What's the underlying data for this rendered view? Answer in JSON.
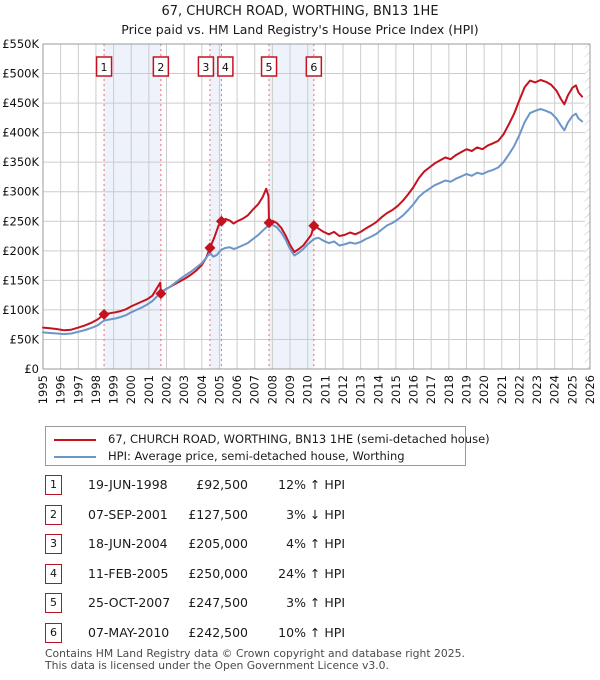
{
  "header": {
    "title": "67, CHURCH ROAD, WORTHING, BN13 1HE",
    "subtitle": "Price paid vs. HM Land Registry's House Price Index (HPI)"
  },
  "legend": {
    "items": [
      {
        "label": "67, CHURCH ROAD, WORTHING, BN13 1HE (semi-detached house)",
        "color": "#c4121f"
      },
      {
        "label": "HPI: Average price, semi-detached house, Worthing",
        "color": "#6d96c8"
      }
    ]
  },
  "table": {
    "rows": [
      {
        "num": "1",
        "date": "19-JUN-1998",
        "price": "£92,500",
        "hpi": "12% ↑ HPI"
      },
      {
        "num": "2",
        "date": "07-SEP-2001",
        "price": "£127,500",
        "hpi": "3% ↓ HPI"
      },
      {
        "num": "3",
        "date": "18-JUN-2004",
        "price": "£205,000",
        "hpi": "4% ↑ HPI"
      },
      {
        "num": "4",
        "date": "11-FEB-2005",
        "price": "£250,000",
        "hpi": "24% ↑ HPI"
      },
      {
        "num": "5",
        "date": "25-OCT-2007",
        "price": "£247,500",
        "hpi": "3% ↑ HPI"
      },
      {
        "num": "6",
        "date": "07-MAY-2010",
        "price": "£242,500",
        "hpi": "10% ↑ HPI"
      }
    ]
  },
  "footer": {
    "line1": "Contains HM Land Registry data © Crown copyright and database right 2025.",
    "line2": "This data is licensed under the Open Government Licence v3.0."
  },
  "chart_data": {
    "type": "line",
    "title": "67, CHURCH ROAD, WORTHING, BN13 1HE",
    "subtitle": "Price paid vs. HM Land Registry's House Price Index (HPI)",
    "units": "GBP_thousands",
    "xlim": [
      1995,
      2026
    ],
    "ylim": [
      0,
      550
    ],
    "grid": true,
    "legend_position": "below",
    "colors": {
      "red": "#c4121f",
      "blue": "#6d96c8",
      "dashed": "#f26d6d",
      "band": "#edf2fb",
      "grid": "#cccccc",
      "frame": "#999999",
      "hatch": "#c3c3cc"
    },
    "y_ticks": [
      {
        "label": "£550K",
        "value": 550
      },
      {
        "label": "£500K",
        "value": 500
      },
      {
        "label": "£450K",
        "value": 450
      },
      {
        "label": "£400K",
        "value": 400
      },
      {
        "label": "£350K",
        "value": 350
      },
      {
        "label": "£300K",
        "value": 300
      },
      {
        "label": "£250K",
        "value": 250
      },
      {
        "label": "£200K",
        "value": 200
      },
      {
        "label": "£150K",
        "value": 150
      },
      {
        "label": "£100K",
        "value": 100
      },
      {
        "label": "£50K",
        "value": 50
      },
      {
        "label": "£0",
        "value": 0
      }
    ],
    "x_ticks": [
      "1995",
      "1996",
      "1997",
      "1998",
      "1999",
      "2000",
      "2001",
      "2002",
      "2003",
      "2004",
      "2005",
      "2006",
      "2007",
      "2008",
      "2009",
      "2010",
      "2011",
      "2012",
      "2013",
      "2014",
      "2015",
      "2016",
      "2017",
      "2018",
      "2019",
      "2020",
      "2021",
      "2022",
      "2023",
      "2024",
      "2025",
      "2026"
    ],
    "sales": [
      {
        "num": "1",
        "date": "19-JUN-1998",
        "year": 1998.46,
        "price": 92500,
        "hpi_diff": "12% ↑ HPI"
      },
      {
        "num": "2",
        "date": "07-SEP-2001",
        "year": 2001.68,
        "price": 127500,
        "hpi_diff": "3% ↓ HPI"
      },
      {
        "num": "3",
        "date": "18-JUN-2004",
        "year": 2004.46,
        "price": 205000,
        "hpi_diff": "4% ↑ HPI"
      },
      {
        "num": "4",
        "date": "11-FEB-2005",
        "year": 2005.11,
        "price": 250000,
        "hpi_diff": "24% ↑ HPI"
      },
      {
        "num": "5",
        "date": "25-OCT-2007",
        "year": 2007.81,
        "price": 247500,
        "hpi_diff": "3% ↑ HPI"
      },
      {
        "num": "6",
        "date": "07-MAY-2010",
        "year": 2010.35,
        "price": 242500,
        "hpi_diff": "10% ↑ HPI"
      }
    ],
    "ownership_bands": [
      [
        1998.46,
        2001.68
      ],
      [
        2004.46,
        2005.11
      ],
      [
        2007.81,
        2010.35
      ]
    ],
    "no_data_band": [
      2025.7,
      2026
    ],
    "series": [
      {
        "id": "price-paid",
        "name": "67, CHURCH ROAD, WORTHING, BN13 1HE (semi-detached house)",
        "color": "#c4121f",
        "points": [
          [
            1995.0,
            70
          ],
          [
            1995.4,
            69
          ],
          [
            1995.8,
            67.5
          ],
          [
            1996.2,
            65.5
          ],
          [
            1996.6,
            66.5
          ],
          [
            1997.0,
            70
          ],
          [
            1997.4,
            74
          ],
          [
            1997.8,
            79
          ],
          [
            1998.1,
            84
          ],
          [
            1998.46,
            92.5
          ],
          [
            1998.8,
            94.5
          ],
          [
            1999.1,
            96
          ],
          [
            1999.4,
            98
          ],
          [
            1999.7,
            101
          ],
          [
            2000.0,
            106
          ],
          [
            2000.3,
            110
          ],
          [
            2000.6,
            114
          ],
          [
            2000.9,
            118
          ],
          [
            2001.2,
            124
          ],
          [
            2001.5,
            139
          ],
          [
            2001.65,
            146
          ],
          [
            2001.68,
            127.5
          ],
          [
            2001.9,
            134
          ],
          [
            2002.2,
            139
          ],
          [
            2002.5,
            144
          ],
          [
            2002.8,
            149
          ],
          [
            2003.1,
            154
          ],
          [
            2003.4,
            160
          ],
          [
            2003.7,
            167
          ],
          [
            2004.0,
            176
          ],
          [
            2004.25,
            188
          ],
          [
            2004.46,
            205
          ],
          [
            2004.7,
            222
          ],
          [
            2004.95,
            243
          ],
          [
            2005.11,
            250
          ],
          [
            2005.35,
            254
          ],
          [
            2005.6,
            251
          ],
          [
            2005.8,
            246
          ],
          [
            2006.0,
            250
          ],
          [
            2006.3,
            254
          ],
          [
            2006.6,
            260
          ],
          [
            2006.9,
            270
          ],
          [
            2007.2,
            279
          ],
          [
            2007.45,
            291
          ],
          [
            2007.65,
            305
          ],
          [
            2007.78,
            293
          ],
          [
            2007.81,
            247.5
          ],
          [
            2008.0,
            251
          ],
          [
            2008.25,
            247
          ],
          [
            2008.5,
            239
          ],
          [
            2008.75,
            226
          ],
          [
            2009.0,
            210
          ],
          [
            2009.25,
            198
          ],
          [
            2009.5,
            203
          ],
          [
            2009.75,
            209
          ],
          [
            2010.0,
            219
          ],
          [
            2010.2,
            227
          ],
          [
            2010.35,
            242.5
          ],
          [
            2010.6,
            238
          ],
          [
            2010.9,
            232
          ],
          [
            2011.2,
            228
          ],
          [
            2011.5,
            232
          ],
          [
            2011.8,
            225
          ],
          [
            2012.1,
            227
          ],
          [
            2012.4,
            231
          ],
          [
            2012.7,
            228
          ],
          [
            2013.0,
            232
          ],
          [
            2013.3,
            238
          ],
          [
            2013.6,
            243
          ],
          [
            2013.9,
            249
          ],
          [
            2014.2,
            257
          ],
          [
            2014.5,
            264
          ],
          [
            2014.8,
            269
          ],
          [
            2015.1,
            276
          ],
          [
            2015.4,
            285
          ],
          [
            2015.7,
            296
          ],
          [
            2016.0,
            308
          ],
          [
            2016.3,
            323
          ],
          [
            2016.6,
            334
          ],
          [
            2016.9,
            341
          ],
          [
            2017.2,
            348
          ],
          [
            2017.5,
            353
          ],
          [
            2017.8,
            358
          ],
          [
            2018.1,
            355
          ],
          [
            2018.4,
            362
          ],
          [
            2018.7,
            367
          ],
          [
            2019.0,
            372
          ],
          [
            2019.3,
            369
          ],
          [
            2019.6,
            375
          ],
          [
            2019.9,
            372
          ],
          [
            2020.2,
            378
          ],
          [
            2020.5,
            382
          ],
          [
            2020.8,
            386
          ],
          [
            2021.1,
            397
          ],
          [
            2021.4,
            414
          ],
          [
            2021.7,
            432
          ],
          [
            2022.0,
            455
          ],
          [
            2022.3,
            477
          ],
          [
            2022.6,
            488
          ],
          [
            2022.9,
            485
          ],
          [
            2023.2,
            489
          ],
          [
            2023.5,
            486
          ],
          [
            2023.8,
            481
          ],
          [
            2024.1,
            471
          ],
          [
            2024.35,
            457
          ],
          [
            2024.55,
            448
          ],
          [
            2024.75,
            463
          ],
          [
            2025.0,
            476
          ],
          [
            2025.2,
            480
          ],
          [
            2025.35,
            468
          ],
          [
            2025.55,
            461
          ]
        ]
      },
      {
        "id": "hpi",
        "name": "HPI: Average price, semi-detached house, Worthing",
        "color": "#6d96c8",
        "points": [
          [
            1995.0,
            62
          ],
          [
            1995.4,
            61
          ],
          [
            1995.8,
            60
          ],
          [
            1996.2,
            59
          ],
          [
            1996.6,
            60
          ],
          [
            1997.0,
            63
          ],
          [
            1997.4,
            66
          ],
          [
            1997.8,
            70
          ],
          [
            1998.1,
            74
          ],
          [
            1998.46,
            82
          ],
          [
            1998.8,
            84
          ],
          [
            1999.1,
            85.5
          ],
          [
            1999.4,
            88
          ],
          [
            1999.7,
            91
          ],
          [
            2000.0,
            96
          ],
          [
            2000.3,
            100
          ],
          [
            2000.6,
            104
          ],
          [
            2000.9,
            109
          ],
          [
            2001.2,
            115
          ],
          [
            2001.5,
            124
          ],
          [
            2001.68,
            131
          ],
          [
            2001.9,
            134
          ],
          [
            2002.2,
            139
          ],
          [
            2002.5,
            146
          ],
          [
            2002.8,
            153
          ],
          [
            2003.1,
            159
          ],
          [
            2003.4,
            165
          ],
          [
            2003.7,
            172
          ],
          [
            2004.0,
            179
          ],
          [
            2004.25,
            188
          ],
          [
            2004.46,
            197
          ],
          [
            2004.65,
            190
          ],
          [
            2004.85,
            193
          ],
          [
            2005.11,
            202
          ],
          [
            2005.35,
            205
          ],
          [
            2005.6,
            206
          ],
          [
            2005.8,
            203
          ],
          [
            2006.0,
            205
          ],
          [
            2006.3,
            209
          ],
          [
            2006.6,
            213
          ],
          [
            2006.9,
            220
          ],
          [
            2007.2,
            227
          ],
          [
            2007.45,
            234
          ],
          [
            2007.7,
            241
          ],
          [
            2007.95,
            245
          ],
          [
            2008.25,
            240
          ],
          [
            2008.5,
            231
          ],
          [
            2008.75,
            219
          ],
          [
            2009.0,
            203
          ],
          [
            2009.25,
            192
          ],
          [
            2009.5,
            197
          ],
          [
            2009.75,
            203
          ],
          [
            2010.0,
            211
          ],
          [
            2010.2,
            216
          ],
          [
            2010.35,
            220
          ],
          [
            2010.6,
            222
          ],
          [
            2010.9,
            217
          ],
          [
            2011.2,
            213
          ],
          [
            2011.5,
            216
          ],
          [
            2011.8,
            209
          ],
          [
            2012.1,
            211
          ],
          [
            2012.4,
            214
          ],
          [
            2012.7,
            212
          ],
          [
            2013.0,
            215
          ],
          [
            2013.3,
            220
          ],
          [
            2013.6,
            224
          ],
          [
            2013.9,
            229
          ],
          [
            2014.2,
            236
          ],
          [
            2014.5,
            243
          ],
          [
            2014.8,
            247
          ],
          [
            2015.1,
            253
          ],
          [
            2015.4,
            260
          ],
          [
            2015.7,
            269
          ],
          [
            2016.0,
            279
          ],
          [
            2016.3,
            291
          ],
          [
            2016.6,
            299
          ],
          [
            2016.9,
            305
          ],
          [
            2017.2,
            311
          ],
          [
            2017.5,
            315
          ],
          [
            2017.8,
            319
          ],
          [
            2018.1,
            317
          ],
          [
            2018.4,
            322
          ],
          [
            2018.7,
            326
          ],
          [
            2019.0,
            330
          ],
          [
            2019.3,
            327
          ],
          [
            2019.6,
            332
          ],
          [
            2019.9,
            330
          ],
          [
            2020.2,
            334
          ],
          [
            2020.5,
            337
          ],
          [
            2020.8,
            341
          ],
          [
            2021.1,
            350
          ],
          [
            2021.4,
            363
          ],
          [
            2021.7,
            377
          ],
          [
            2022.0,
            396
          ],
          [
            2022.3,
            418
          ],
          [
            2022.6,
            433
          ],
          [
            2022.9,
            437
          ],
          [
            2023.2,
            440
          ],
          [
            2023.5,
            437
          ],
          [
            2023.8,
            433
          ],
          [
            2024.1,
            424
          ],
          [
            2024.35,
            412
          ],
          [
            2024.55,
            404
          ],
          [
            2024.75,
            417
          ],
          [
            2025.0,
            428
          ],
          [
            2025.2,
            432
          ],
          [
            2025.35,
            424
          ],
          [
            2025.55,
            419
          ]
        ]
      }
    ]
  }
}
